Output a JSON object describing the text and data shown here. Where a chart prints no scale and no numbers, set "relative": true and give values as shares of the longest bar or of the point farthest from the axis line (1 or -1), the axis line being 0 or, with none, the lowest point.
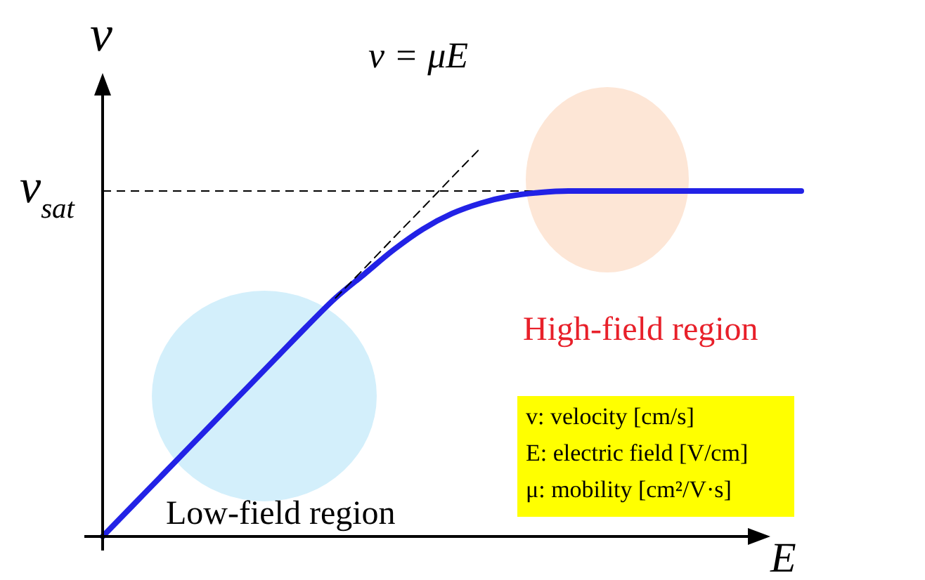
{
  "chart_data": {
    "type": "line",
    "relative": true,
    "xlabel": "E",
    "ylabel": "v",
    "categories": [
      null,
      null,
      null,
      null,
      null,
      null,
      null,
      null,
      null,
      null,
      null,
      null,
      null,
      null,
      null,
      null,
      null,
      null,
      null,
      null,
      null,
      null,
      null,
      null,
      null
    ],
    "series": [
      {
        "color": "#2222e6",
        "line_style": "solid",
        "values": [
          0,
          0.077,
          0.154,
          0.231,
          0.308,
          0.385,
          0.462,
          0.539,
          0.613,
          0.675,
          0.737,
          0.79,
          0.83,
          0.857,
          0.875,
          0.884,
          0.888,
          0.888,
          0.888,
          0.888,
          0.888,
          0.888,
          0.888,
          0.888,
          0.888
        ]
      },
      {
        "color": "#000000",
        "line_style": "dashed",
        "values": [
          null,
          null,
          null,
          null,
          null,
          null,
          null,
          null,
          0.613,
          0.69,
          0.768,
          0.845,
          0.923,
          1.0,
          null,
          null,
          null,
          null,
          null,
          null,
          null,
          null,
          null,
          null,
          null
        ]
      }
    ],
    "ref_lines": [
      {
        "axis": "y",
        "value": 0.888,
        "label": "v$_{sat}$",
        "color": "#000000",
        "line_style": "dashed"
      }
    ],
    "annotations": [
      "v = μE",
      "Low-field region",
      "High-field region",
      "v: velocity [cm/s]",
      "E: electric field [V/cm]",
      "μ: mobility [cm²/V·s]"
    ]
  }
}
